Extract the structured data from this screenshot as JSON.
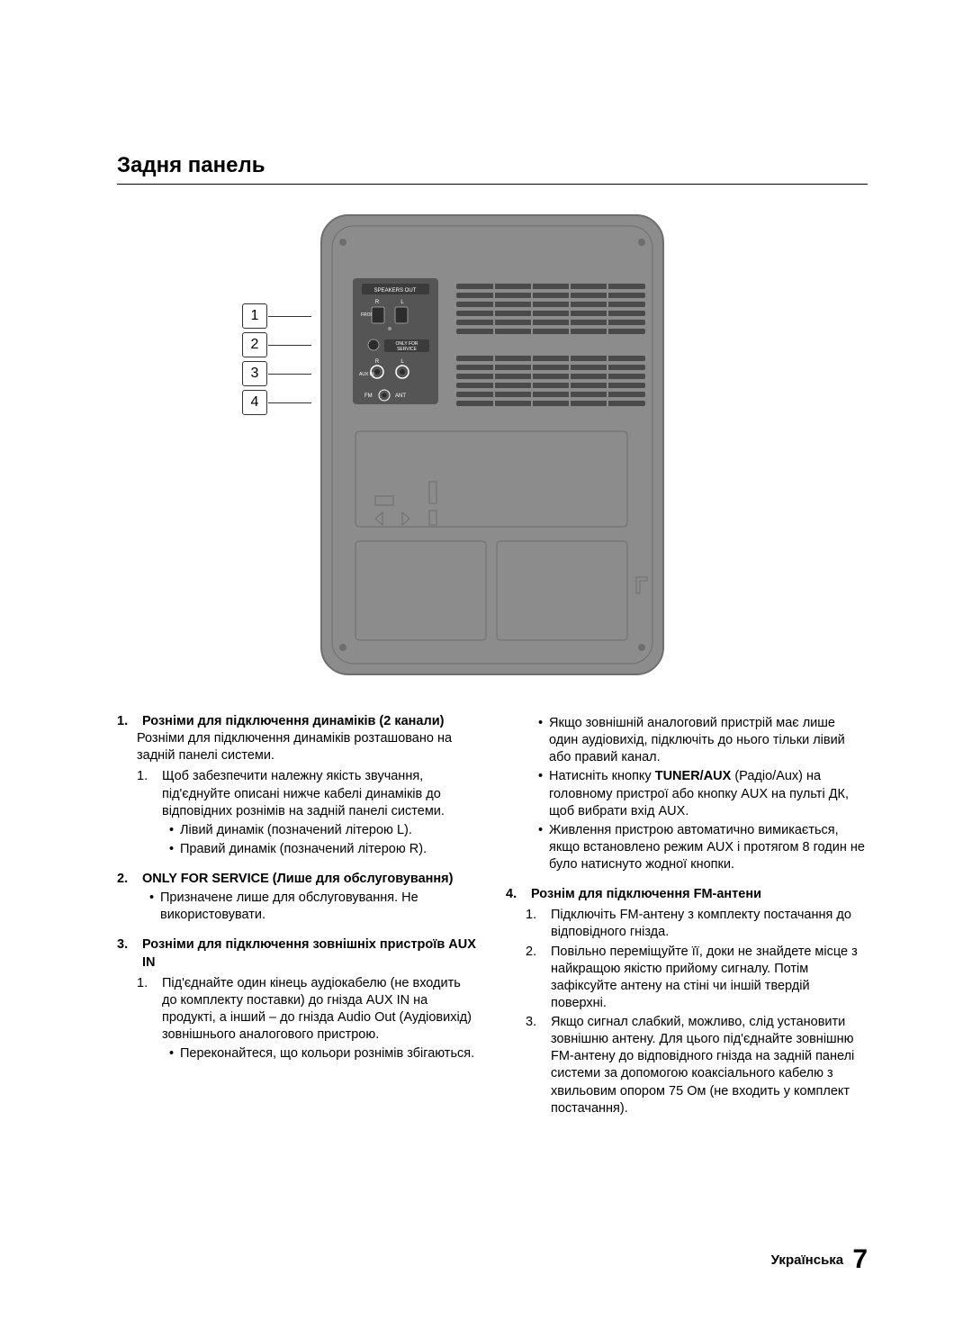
{
  "title": "Задня панель",
  "diagram": {
    "callouts": [
      "1",
      "2",
      "3",
      "4"
    ],
    "labels": {
      "speakers_out": "SPEAKERS OUT",
      "r": "R",
      "l": "L",
      "front": "FRONT",
      "only_for_service": "ONLY FOR\nSERVICE",
      "aux_in": "AUX IN",
      "fm": "FM",
      "ant": "ANT"
    },
    "colors": {
      "body": "#8c8c8c",
      "body_edge": "#6e6e6e",
      "panel_dark": "#555555",
      "slot": "#4a4a4a",
      "label_bg": "#3b3b3b",
      "connector": "#2c2c2c",
      "text": "#ffffff"
    }
  },
  "left_column": {
    "item1": {
      "num": "1.",
      "head": "Розніми для підключення динаміків (2 канали)",
      "body": "Розніми для підключення динаміків розташовано на задній панелі системи.",
      "sub": [
        {
          "num": "1.",
          "text": "Щоб забезпечити належну якість звучання, під'єднуйте описані нижче кабелі динаміків до відповідних рознімів на задній панелі системи.",
          "bullets": [
            "Лівий динамік (позначений літерою L).",
            "Правий динамік (позначений літерою R)."
          ]
        }
      ]
    },
    "item2": {
      "num": "2.",
      "head": "ONLY FOR SERVICE (Лише для обслуговування)",
      "bullets": [
        "Призначене лише для обслуговування. Не використовувати."
      ]
    },
    "item3": {
      "num": "3.",
      "head": "Розніми для підключення зовнішніх пристроїв AUX IN",
      "sub": [
        {
          "num": "1.",
          "text": "Під'єднайте один кінець аудіокабелю (не входить до комплекту поставки) до гнізда AUX IN на продукті, а інший – до гнізда Audio Out (Аудіовихід) зовнішнього аналогового пристрою.",
          "bullets": [
            "Переконайтеся, що кольори рознімів збігаються."
          ]
        }
      ]
    }
  },
  "right_column": {
    "top_bullets": [
      "Якщо зовнішній аналоговий пристрій має лише один аудіовихід, підключіть до нього тільки лівий або правий канал.",
      {
        "prefix": "Натисніть кнопку ",
        "bold": "TUNER/AUX",
        "suffix": " (Радіо/Aux) на головному пристрої або кнопку AUX на пульті ДК, щоб вибрати вхід AUX."
      },
      "Живлення пристрою автоматично вимикається, якщо встановлено режим AUX і протягом 8 годин не було натиснуто жодної кнопки."
    ],
    "item4": {
      "num": "4.",
      "head": "Рознім для підключення FM-антени",
      "sub": [
        {
          "num": "1.",
          "text": "Підключіть FM-антену з комплекту постачання до відповідного гнізда."
        },
        {
          "num": "2.",
          "text": "Повільно переміщуйте її, доки не знайдете місце з найкращою якістю прийому сигналу. Потім зафіксуйте антену на стіні чи іншій твердій поверхні."
        },
        {
          "num": "3.",
          "text": "Якщо сигнал слабкий, можливо, слід установити зовнішню антену. Для цього під'єднайте зовнішню FM-антену до відповідного гнізда на задній панелі системи за допомогою коаксіального кабелю з хвильовим опором 75 Ом (не входить у комплект постачання)."
        }
      ]
    }
  },
  "footer": {
    "lang": "Українська",
    "page": "7"
  }
}
